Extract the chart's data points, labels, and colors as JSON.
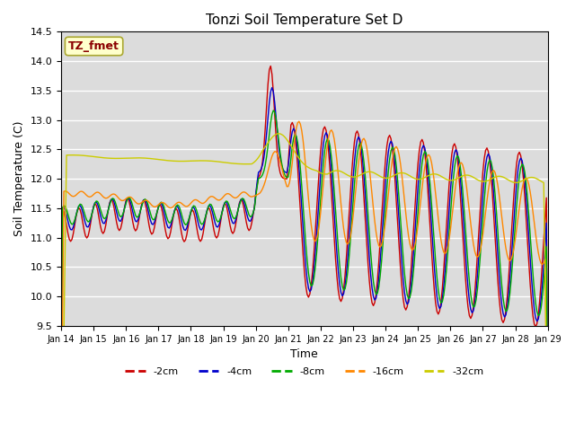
{
  "title": "Tonzi Soil Temperature Set D",
  "xlabel": "Time",
  "ylabel": "Soil Temperature (C)",
  "ylim": [
    9.5,
    14.5
  ],
  "xlim": [
    0,
    360
  ],
  "annotation": "TZ_fmet",
  "colors": {
    "-2cm": "#cc0000",
    "-4cm": "#0000cc",
    "-8cm": "#00aa00",
    "-16cm": "#ff8800",
    "-32cm": "#cccc00"
  },
  "tick_labels": [
    "Jan 14",
    "Jan 15",
    "Jan 16",
    "Jan 17",
    "Jan 18",
    "Jan 19",
    "Jan 20",
    "Jan 21",
    "Jan 22",
    "Jan 23",
    "Jan 24",
    "Jan 25",
    "Jan 26",
    "Jan 27",
    "Jan 28",
    "Jan 29"
  ],
  "tick_positions": [
    0,
    24,
    48,
    72,
    96,
    120,
    144,
    168,
    192,
    216,
    240,
    264,
    288,
    312,
    336,
    360
  ],
  "background_color": "#dcdcdc",
  "plot_bg": "#dcdcdc"
}
